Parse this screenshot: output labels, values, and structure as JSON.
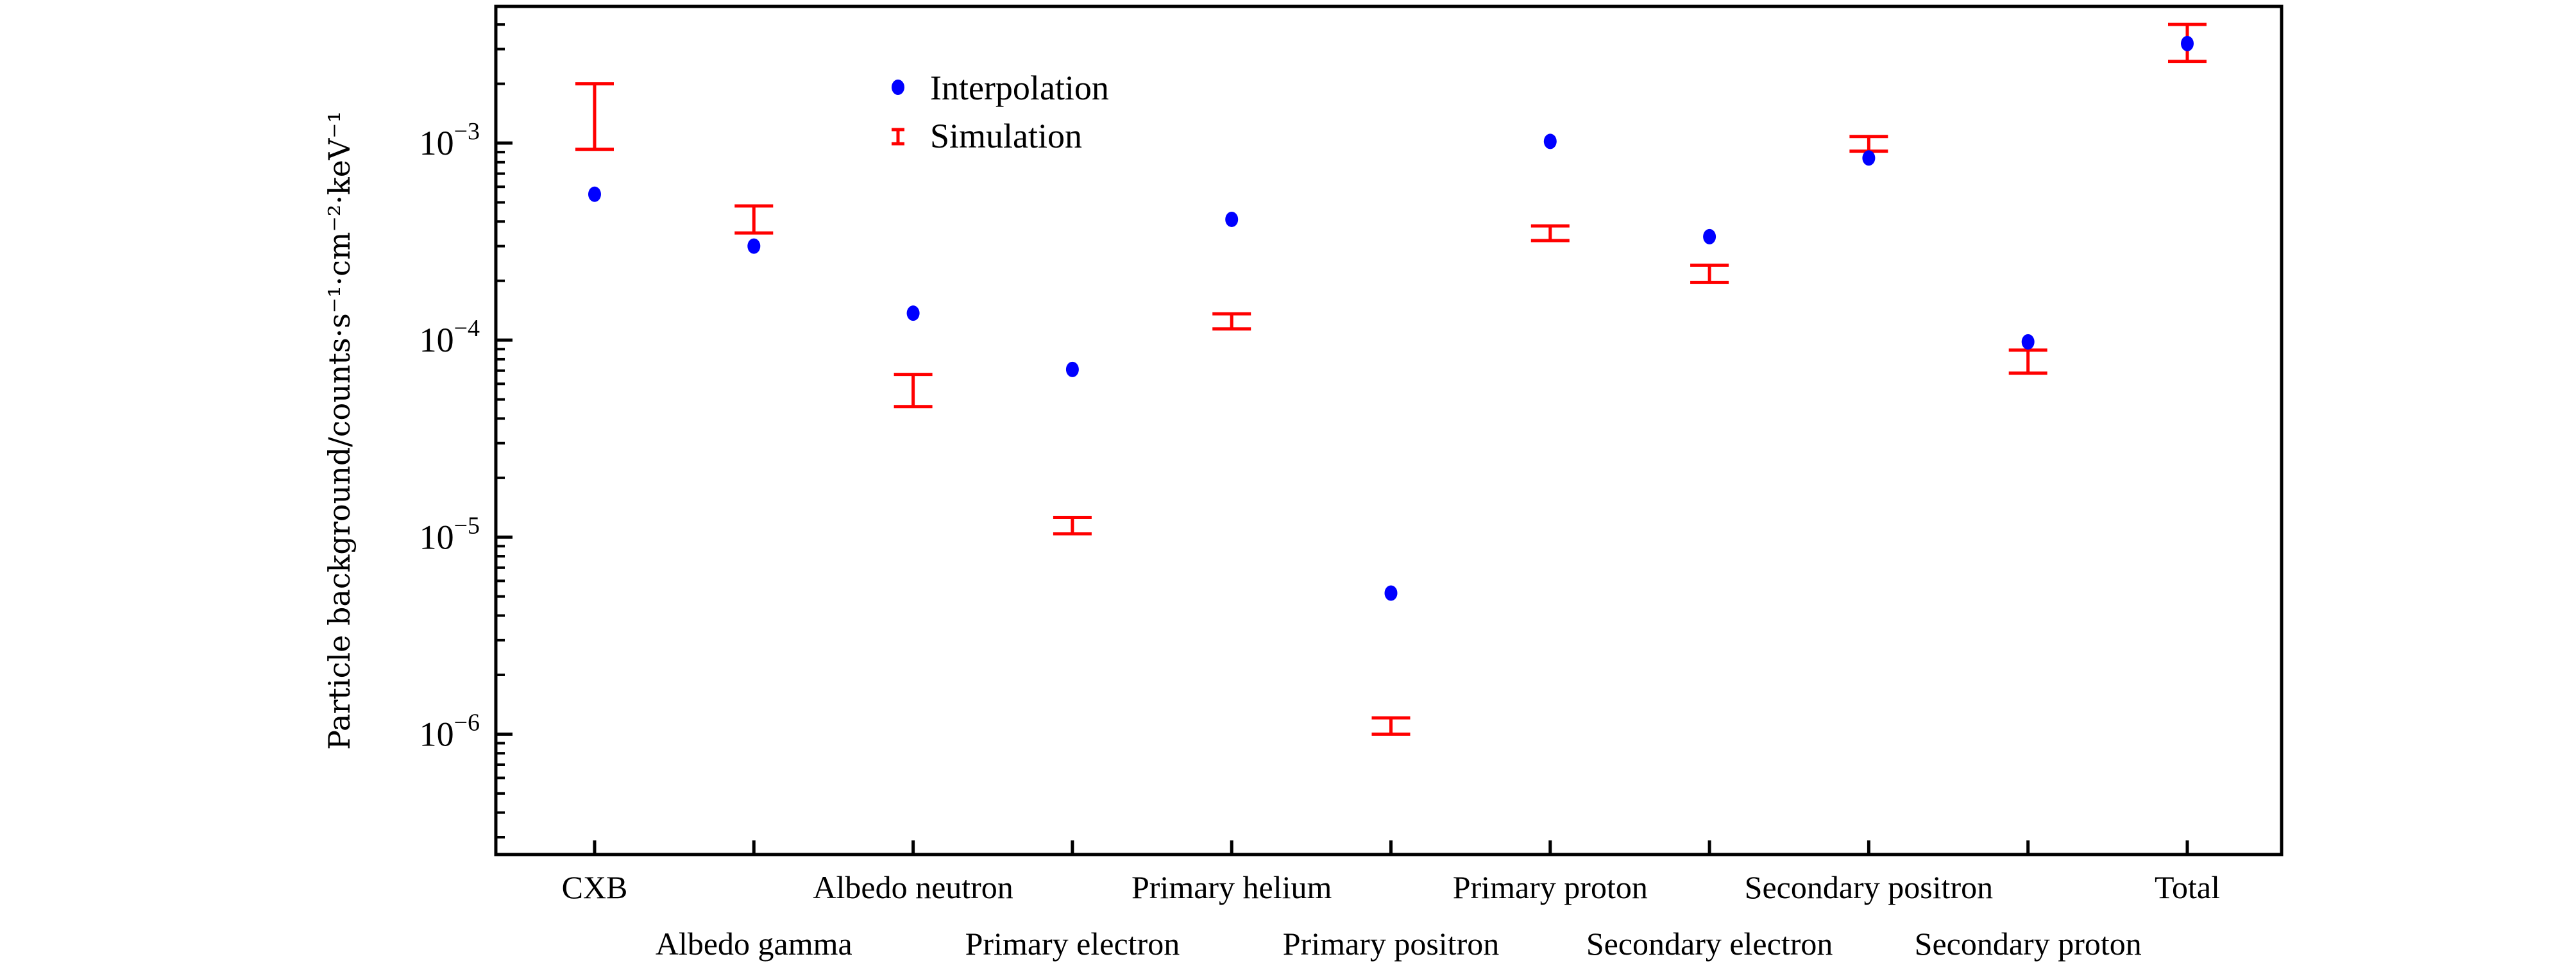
{
  "chart_data": {
    "type": "scatter",
    "title": "",
    "xlabel": "",
    "ylabel": "Particle background/counts·s⁻¹·cm⁻²·keV⁻¹",
    "yscale": "log",
    "ylim": [
      2.45e-07,
      0.00494
    ],
    "yticks": [
      {
        "value": 0.001,
        "base": "10",
        "exp": "−3"
      },
      {
        "value": 0.0001,
        "base": "10",
        "exp": "−4"
      },
      {
        "value": 1e-05,
        "base": "10",
        "exp": "−5"
      },
      {
        "value": 1e-06,
        "base": "10",
        "exp": "−6"
      }
    ],
    "categories": [
      "CXB",
      "Albedo gamma",
      "Albedo neutron",
      "Primary electron",
      "Primary helium",
      "Primary positron",
      "Primary proton",
      "Secondary electron",
      "Secondary positron",
      "Secondary proton",
      "Total"
    ],
    "legend": {
      "position": "top-left",
      "entries": [
        "Interpolation",
        "Simulation"
      ]
    },
    "series": [
      {
        "name": "Interpolation",
        "kind": "point",
        "color": "#0000ff",
        "values": [
          0.00055,
          0.0003,
          0.000137,
          7.1e-05,
          0.00041,
          5.2e-06,
          0.00102,
          0.000335,
          0.00084,
          9.8e-05,
          0.0032
        ]
      },
      {
        "name": "Simulation",
        "kind": "errorbar",
        "color": "#ff0000",
        "lower": [
          0.00093,
          0.00035,
          4.6e-05,
          1.04e-05,
          0.000114,
          1e-06,
          0.00032,
          0.000196,
          0.00091,
          6.8e-05,
          0.0026
        ],
        "upper": [
          0.002,
          0.00048,
          6.7e-05,
          1.26e-05,
          0.000136,
          1.21e-06,
          0.00038,
          0.00024,
          0.00108,
          8.9e-05,
          0.004
        ]
      }
    ],
    "grid": false
  }
}
